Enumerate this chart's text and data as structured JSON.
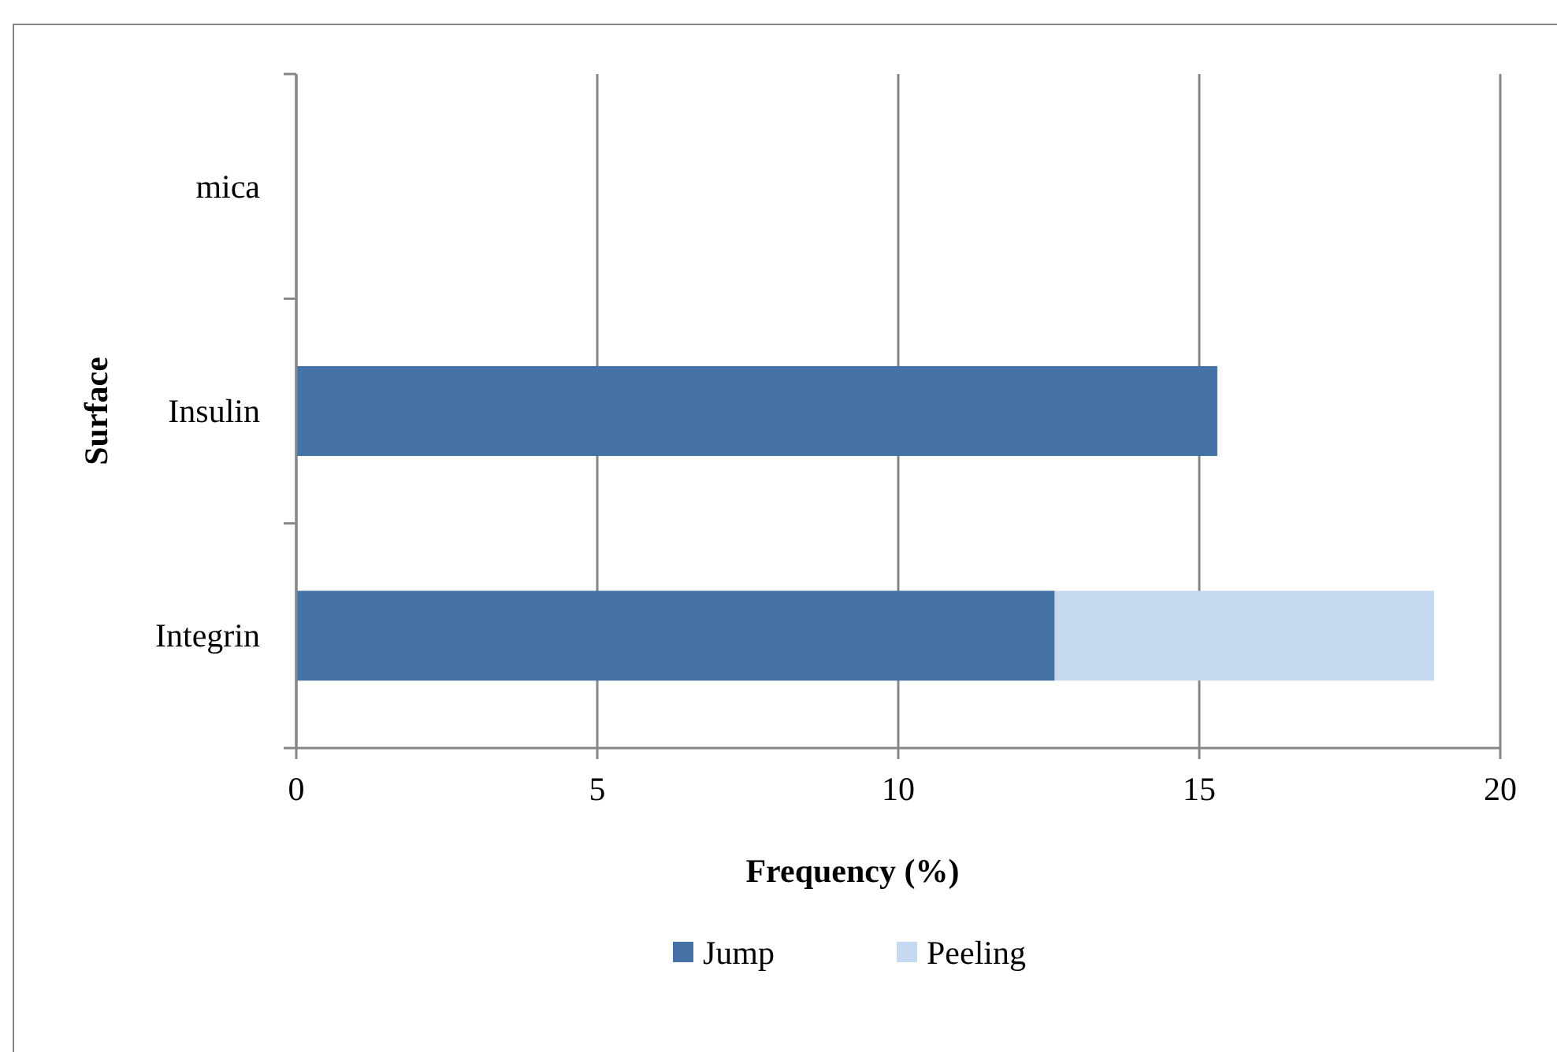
{
  "chart_data": {
    "type": "bar",
    "orientation": "horizontal",
    "stacked": true,
    "categories": [
      "mica",
      "Insulin",
      "Integrin"
    ],
    "series": [
      {
        "name": "Jump",
        "color": "#4472a6",
        "values": [
          null,
          15.3,
          12.6
        ]
      },
      {
        "name": "Peeling",
        "color": "#c6d9f0",
        "values": [
          null,
          null,
          6.3
        ]
      }
    ],
    "xlabel": "Frequency (%)",
    "ylabel": "Surface",
    "xlim": [
      0,
      20
    ],
    "xticks": [
      0,
      5,
      10,
      15,
      20
    ],
    "grid": "x",
    "legend": "bottom"
  }
}
